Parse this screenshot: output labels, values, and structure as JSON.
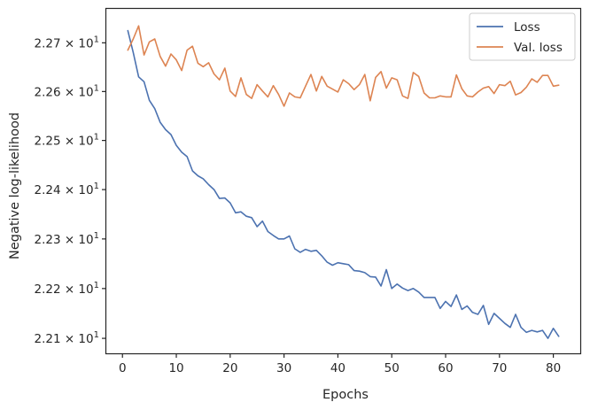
{
  "chart_data": {
    "type": "line",
    "xlabel": "Epochs",
    "ylabel": "Negative log-likelihood",
    "xlim": [
      -3,
      85
    ],
    "ylim": [
      22.07,
      22.77
    ],
    "yscale": "log",
    "grid": false,
    "legend_position": "top-right",
    "x_ticks": [
      0,
      10,
      20,
      30,
      40,
      50,
      60,
      70,
      80
    ],
    "y_ticks": [
      {
        "value": 22.1,
        "mantissa": "2.21",
        "exponent": "1"
      },
      {
        "value": 22.2,
        "mantissa": "2.22",
        "exponent": "1"
      },
      {
        "value": 22.3,
        "mantissa": "2.23",
        "exponent": "1"
      },
      {
        "value": 22.4,
        "mantissa": "2.24",
        "exponent": "1"
      },
      {
        "value": 22.5,
        "mantissa": "2.25",
        "exponent": "1"
      },
      {
        "value": 22.6,
        "mantissa": "2.26",
        "exponent": "1"
      },
      {
        "value": 22.7,
        "mantissa": "2.27",
        "exponent": "1"
      }
    ],
    "times_symbol": "×",
    "base": "10",
    "series": [
      {
        "name": "Loss",
        "color": "#4c72b0",
        "x": [
          1,
          2,
          3,
          4,
          5,
          6,
          7,
          8,
          9,
          10,
          11,
          12,
          13,
          14,
          15,
          16,
          17,
          18,
          19,
          20,
          21,
          22,
          23,
          24,
          25,
          26,
          27,
          28,
          29,
          30,
          31,
          32,
          33,
          34,
          35,
          36,
          37,
          38,
          39,
          40,
          41,
          42,
          43,
          44,
          45,
          46,
          47,
          48,
          49,
          50,
          51,
          52,
          53,
          54,
          55,
          56,
          57,
          58,
          59,
          60,
          61,
          62,
          63,
          64,
          65,
          66,
          67,
          68,
          69,
          70,
          71,
          72,
          73,
          74,
          75,
          76,
          77,
          78,
          79,
          80,
          81
        ],
        "y": [
          22.725,
          22.68,
          22.63,
          22.62,
          22.582,
          22.565,
          22.537,
          22.522,
          22.512,
          22.49,
          22.476,
          22.467,
          22.438,
          22.428,
          22.422,
          22.41,
          22.4,
          22.382,
          22.383,
          22.373,
          22.353,
          22.355,
          22.346,
          22.343,
          22.325,
          22.336,
          22.315,
          22.307,
          22.3,
          22.3,
          22.306,
          22.28,
          22.273,
          22.279,
          22.275,
          22.277,
          22.266,
          22.253,
          22.247,
          22.252,
          22.25,
          22.248,
          22.236,
          22.235,
          22.232,
          22.224,
          22.223,
          22.205,
          22.238,
          22.2,
          22.209,
          22.201,
          22.196,
          22.2,
          22.193,
          22.182,
          22.182,
          22.182,
          22.16,
          22.174,
          22.164,
          22.187,
          22.158,
          22.165,
          22.152,
          22.148,
          22.166,
          22.128,
          22.15,
          22.14,
          22.13,
          22.122,
          22.148,
          22.122,
          22.112,
          22.116,
          22.113,
          22.116,
          22.1,
          22.12,
          22.104
        ]
      },
      {
        "name": "Val. loss",
        "color": "#dd8452",
        "x": [
          1,
          2,
          3,
          4,
          5,
          6,
          7,
          8,
          9,
          10,
          11,
          12,
          13,
          14,
          15,
          16,
          17,
          18,
          19,
          20,
          21,
          22,
          23,
          24,
          25,
          26,
          27,
          28,
          29,
          30,
          31,
          32,
          33,
          34,
          35,
          36,
          37,
          38,
          39,
          40,
          41,
          42,
          43,
          44,
          45,
          46,
          47,
          48,
          49,
          50,
          51,
          52,
          53,
          54,
          55,
          56,
          57,
          58,
          59,
          60,
          61,
          62,
          63,
          64,
          65,
          66,
          67,
          68,
          69,
          70,
          71,
          72,
          73,
          74,
          75,
          76,
          77,
          78,
          79,
          80,
          81
        ],
        "y": [
          22.685,
          22.708,
          22.735,
          22.675,
          22.702,
          22.708,
          22.672,
          22.652,
          22.677,
          22.665,
          22.643,
          22.685,
          22.693,
          22.658,
          22.651,
          22.659,
          22.636,
          22.624,
          22.648,
          22.601,
          22.59,
          22.628,
          22.594,
          22.586,
          22.614,
          22.601,
          22.589,
          22.612,
          22.594,
          22.57,
          22.597,
          22.589,
          22.587,
          22.611,
          22.635,
          22.601,
          22.631,
          22.611,
          22.605,
          22.599,
          22.624,
          22.616,
          22.604,
          22.614,
          22.635,
          22.581,
          22.629,
          22.641,
          22.607,
          22.628,
          22.624,
          22.591,
          22.586,
          22.639,
          22.631,
          22.597,
          22.587,
          22.587,
          22.591,
          22.589,
          22.589,
          22.634,
          22.606,
          22.591,
          22.589,
          22.599,
          22.607,
          22.61,
          22.596,
          22.614,
          22.612,
          22.621,
          22.593,
          22.598,
          22.609,
          22.626,
          22.619,
          22.633,
          22.633,
          22.611,
          22.613
        ]
      }
    ]
  }
}
